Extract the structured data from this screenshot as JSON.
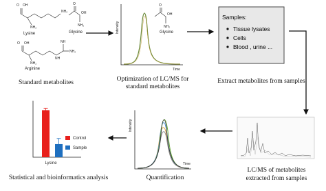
{
  "standard_metabolites": {
    "structures": [
      {
        "name": "Lysine",
        "atoms": [
          "O",
          "OH",
          "NH₂",
          "NH₂"
        ]
      },
      {
        "name": "Glycine",
        "atoms": [
          "O",
          "OH",
          "NH₂"
        ]
      },
      {
        "name": "Arginine",
        "atoms": [
          "O",
          "OH",
          "NH₂",
          "NH",
          "NH₂",
          "NH"
        ]
      }
    ],
    "caption": "Standard metabolites"
  },
  "optimization": {
    "y_label": "Intensity",
    "x_label": "Time",
    "structure": {
      "name": "Glycine",
      "atoms": [
        "O",
        "OH",
        "NH₂"
      ]
    },
    "caption": [
      "Optimization of  LC/MS for",
      "standard metabolites"
    ]
  },
  "extraction": {
    "box_title": "Samples:",
    "items": [
      "Tissue  lysates",
      "Cells",
      "Blood , urine ..."
    ],
    "caption": "Extract metabolites from samples"
  },
  "lcms": {
    "caption": [
      "LC/MS of metabolites",
      "extracted from samples"
    ]
  },
  "quantification": {
    "y_label": "Intensity",
    "x_label": "Time",
    "caption": "Quantification"
  },
  "statistics": {
    "category": "Lysine",
    "series": [
      {
        "name": "Control",
        "color": "#e8201c",
        "value": 100,
        "error": 4
      },
      {
        "name": "Sample",
        "color": "#1f6fbf",
        "value": 28,
        "error": 12
      }
    ],
    "caption": "Statistical and bioinformatics analysis"
  }
}
